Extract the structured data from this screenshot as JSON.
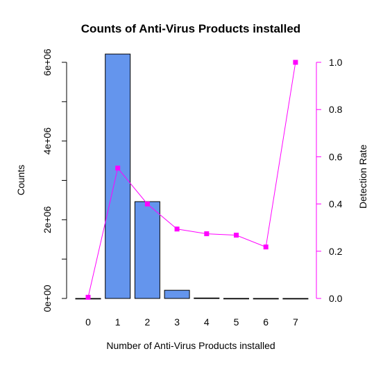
{
  "chart_data": {
    "type": "bar",
    "title": "Counts of Anti-Virus Products installed",
    "xlabel": "Number of Anti-Virus Products installed",
    "ylabel": "Counts",
    "y2label": "Detection Rate",
    "categories": [
      "0",
      "1",
      "2",
      "3",
      "4",
      "5",
      "6",
      "7"
    ],
    "series": [
      {
        "name": "",
        "axis": "left",
        "type": "bar",
        "color": "#6495ED",
        "values": [
          0,
          6210000,
          2460000,
          208000,
          12000,
          1500,
          300,
          30
        ]
      },
      {
        "name": "",
        "axis": "right",
        "type": "line",
        "color": "#FF00FF",
        "values": [
          0.005,
          0.552,
          0.4,
          0.294,
          0.274,
          0.268,
          0.218,
          1.0
        ]
      }
    ],
    "ylim": [
      0,
      6000000
    ],
    "y_ticks": [
      "0e+00",
      "2e+06",
      "4e+06",
      "6e+06"
    ],
    "y_tick_values": [
      0,
      2000000,
      4000000,
      6000000
    ],
    "y2lim": [
      0,
      1
    ],
    "y2_ticks": [
      "0.0",
      "0.2",
      "0.4",
      "0.6",
      "0.8",
      "1.0"
    ],
    "y2_tick_values": [
      0,
      0.2,
      0.4,
      0.6,
      0.8,
      1.0
    ],
    "grid": false,
    "legend": "none"
  }
}
